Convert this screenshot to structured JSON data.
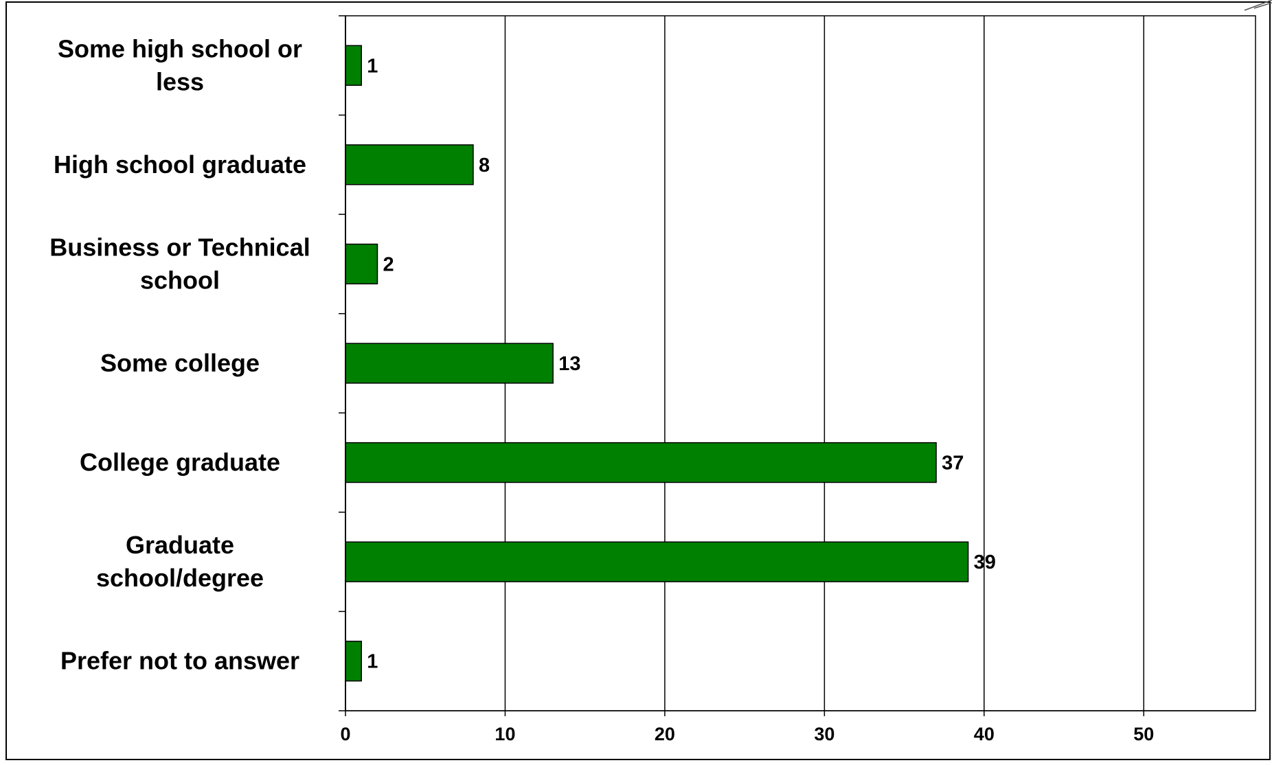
{
  "chart_data": {
    "type": "bar",
    "orientation": "horizontal",
    "title": "",
    "xlabel": "",
    "ylabel": "",
    "categories": [
      "Some high school  or less",
      "High school graduate",
      "Business or Technical school",
      "Some college",
      "College graduate",
      "Graduate school/degree",
      "Prefer not to answer"
    ],
    "category_lines": [
      [
        "Some high school  or",
        "less"
      ],
      [
        "High school graduate"
      ],
      [
        "Business or Technical",
        "school"
      ],
      [
        "Some college"
      ],
      [
        "College graduate"
      ],
      [
        "Graduate",
        "school/degree"
      ],
      [
        "Prefer not to answer"
      ]
    ],
    "values": [
      1,
      8,
      2,
      13,
      37,
      39,
      1
    ],
    "data_labels": [
      "1",
      "8",
      "2",
      "13",
      "37",
      "39",
      "1"
    ],
    "xlim": [
      0,
      57
    ],
    "xticks": [
      0,
      10,
      20,
      30,
      40,
      50
    ],
    "xtick_labels": [
      "0",
      "10",
      "20",
      "30",
      "40",
      "50"
    ],
    "grid": "vertical",
    "legend": "none",
    "colors": {
      "bar": "#008000",
      "bar_edge": "#000000",
      "grid": "#000000",
      "text": "#000000"
    }
  }
}
